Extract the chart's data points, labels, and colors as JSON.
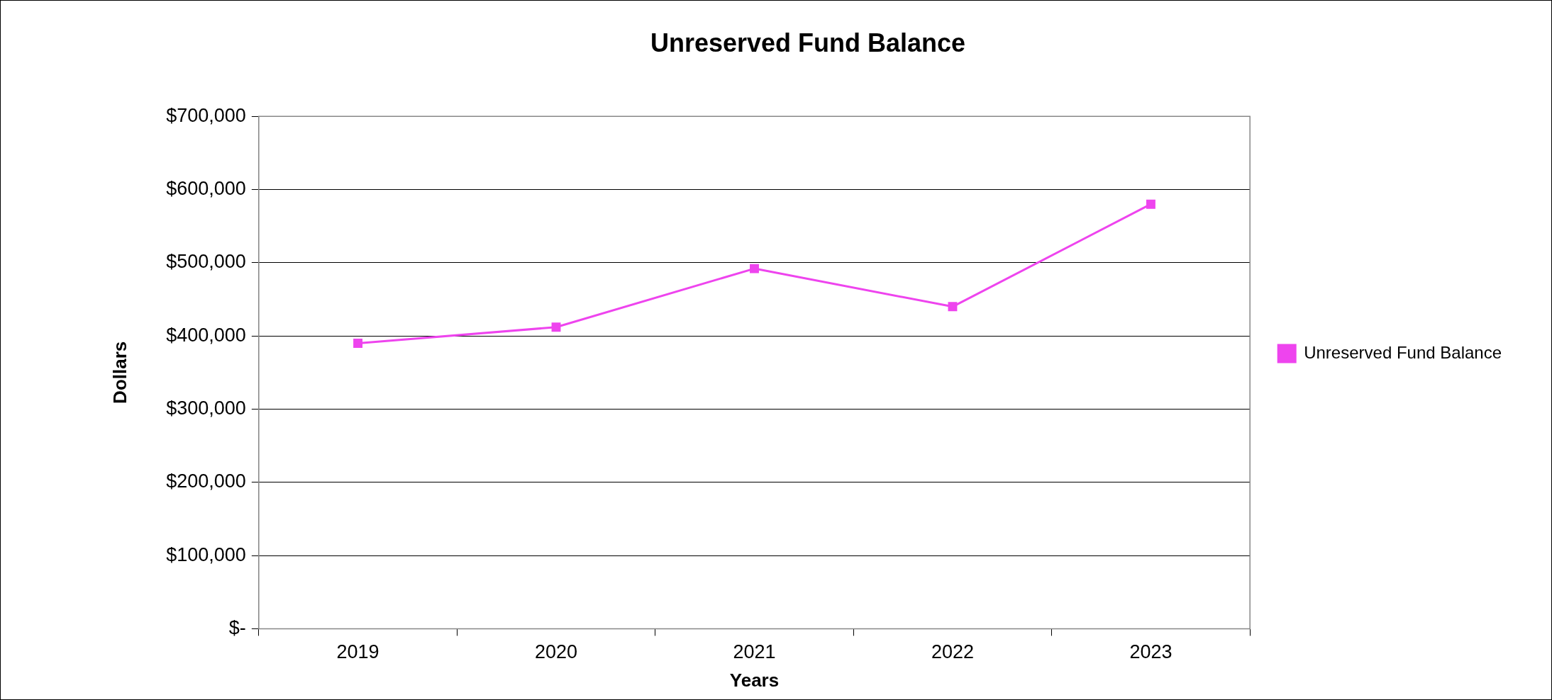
{
  "chart_data": {
    "type": "line",
    "title": "Unreserved Fund Balance",
    "xlabel": "Years",
    "ylabel": "Dollars",
    "categories": [
      "2019",
      "2020",
      "2021",
      "2022",
      "2023"
    ],
    "series": [
      {
        "name": "Unreserved Fund Balance",
        "color": "#ee44ee",
        "values": [
          390000,
          412000,
          492000,
          440000,
          580000
        ]
      }
    ],
    "ylim": [
      0,
      700000
    ],
    "yticks": [
      {
        "value": 0,
        "label": "$-"
      },
      {
        "value": 100000,
        "label": "$100,000"
      },
      {
        "value": 200000,
        "label": "$200,000"
      },
      {
        "value": 300000,
        "label": "$300,000"
      },
      {
        "value": 400000,
        "label": "$400,000"
      },
      {
        "value": 500000,
        "label": "$500,000"
      },
      {
        "value": 600000,
        "label": "$600,000"
      },
      {
        "value": 700000,
        "label": "$700,000"
      }
    ],
    "grid": "y",
    "legend": "right",
    "marker": "square",
    "line_style": "solid"
  }
}
